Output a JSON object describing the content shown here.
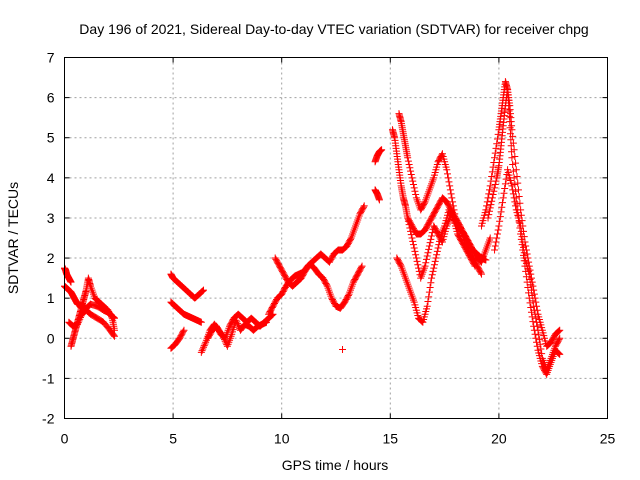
{
  "chart_data": {
    "type": "scatter",
    "title": "Day 196 of 2021, Sidereal Day-to-day VTEC variation (SDTVAR) for receiver chpg",
    "xlabel": "GPS time / hours",
    "ylabel": "SDTVAR / TECUs",
    "xlim": [
      0,
      25
    ],
    "ylim": [
      -2,
      7
    ],
    "xticks": [
      "0",
      "5",
      "10",
      "15",
      "20",
      "25"
    ],
    "yticks": [
      "-2",
      "-1",
      "0",
      "1",
      "2",
      "3",
      "4",
      "5",
      "6",
      "7"
    ],
    "grid": true,
    "marker": "+",
    "color": "#ff0000",
    "series_segments": [
      {
        "x": [
          0.0,
          0.05,
          0.1,
          0.2,
          0.3
        ],
        "y": [
          1.75,
          1.7,
          1.6,
          1.5,
          1.4
        ]
      },
      {
        "x": [
          0.0,
          0.1,
          0.2,
          0.3,
          0.4,
          0.5,
          0.6,
          0.8,
          1.0,
          1.2,
          1.5,
          1.8,
          2.0,
          2.2,
          2.3
        ],
        "y": [
          1.3,
          1.25,
          1.2,
          1.15,
          1.05,
          0.95,
          0.85,
          0.8,
          0.75,
          0.85,
          0.8,
          0.7,
          0.65,
          0.55,
          0.5
        ]
      },
      {
        "x": [
          0.3,
          0.4,
          0.5,
          0.6,
          0.7,
          0.8,
          0.9,
          1.0,
          1.1,
          1.2,
          1.4,
          1.6,
          1.8,
          2.0,
          2.2,
          2.3
        ],
        "y": [
          -0.2,
          0.0,
          0.2,
          0.4,
          0.6,
          0.8,
          1.0,
          1.2,
          1.5,
          1.3,
          1.0,
          0.9,
          0.8,
          0.7,
          0.5,
          0.2
        ]
      },
      {
        "x": [
          0.2,
          0.4,
          0.6,
          0.8,
          1.0,
          1.2,
          1.5,
          1.8,
          2.1,
          2.3
        ],
        "y": [
          0.4,
          0.3,
          0.35,
          0.6,
          0.7,
          0.6,
          0.5,
          0.4,
          0.2,
          0.05
        ]
      },
      {
        "x": [
          4.9,
          5.0,
          5.2,
          5.4,
          5.6,
          5.8,
          6.0,
          6.2,
          6.4
        ],
        "y": [
          1.6,
          1.5,
          1.4,
          1.3,
          1.2,
          1.1,
          1.0,
          1.1,
          1.2
        ]
      },
      {
        "x": [
          4.9,
          5.1,
          5.3,
          5.5,
          5.7,
          5.9,
          6.1,
          6.3
        ],
        "y": [
          0.9,
          0.8,
          0.7,
          0.6,
          0.55,
          0.5,
          0.45,
          0.4
        ]
      },
      {
        "x": [
          4.9,
          5.1,
          5.3,
          5.5
        ],
        "y": [
          -0.25,
          -0.15,
          0.0,
          0.2
        ]
      },
      {
        "x": [
          6.3,
          6.5,
          6.7,
          6.9,
          7.1,
          7.3,
          7.5,
          7.7,
          7.9,
          8.1,
          8.3,
          8.5,
          8.7,
          8.9,
          9.1,
          9.3
        ],
        "y": [
          -0.35,
          -0.1,
          0.2,
          0.35,
          0.2,
          0.05,
          -0.2,
          0.1,
          0.45,
          0.2,
          0.35,
          0.3,
          0.2,
          0.3,
          0.35,
          0.4
        ]
      },
      {
        "x": [
          6.6,
          6.8,
          7.0,
          7.2,
          7.4,
          7.6,
          7.8,
          8.0,
          8.2,
          8.4,
          8.6,
          8.8,
          9.0,
          9.2,
          9.4,
          9.6
        ],
        "y": [
          0.0,
          0.2,
          0.3,
          0.1,
          0.0,
          0.3,
          0.5,
          0.6,
          0.5,
          0.4,
          0.5,
          0.4,
          0.3,
          0.4,
          0.5,
          0.6
        ]
      },
      {
        "x": [
          9.4,
          9.6,
          9.8,
          10.0,
          10.2,
          10.4,
          10.6,
          10.8,
          11.0,
          11.2,
          11.4,
          11.6,
          11.8,
          12.0,
          12.2,
          12.4,
          12.6,
          12.8,
          13.0,
          13.2,
          13.4,
          13.6,
          13.8
        ],
        "y": [
          0.6,
          0.8,
          1.0,
          1.1,
          1.3,
          1.45,
          1.55,
          1.6,
          1.65,
          1.8,
          1.9,
          2.0,
          2.1,
          2.0,
          1.9,
          2.1,
          2.2,
          2.2,
          2.3,
          2.5,
          2.8,
          3.1,
          3.3
        ]
      },
      {
        "x": [
          9.7,
          9.9,
          10.1,
          10.3,
          10.5,
          10.7,
          10.9,
          11.1,
          11.3,
          11.5,
          11.7,
          11.9,
          12.1,
          12.3,
          12.5,
          12.7,
          12.9,
          13.1,
          13.3,
          13.5,
          13.7
        ],
        "y": [
          2.0,
          1.8,
          1.6,
          1.4,
          1.3,
          1.4,
          1.5,
          1.7,
          1.85,
          1.75,
          1.6,
          1.5,
          1.3,
          1.0,
          0.8,
          0.75,
          0.9,
          1.1,
          1.4,
          1.6,
          1.8
        ]
      },
      {
        "x": [
          12.8
        ],
        "y": [
          -0.28
        ]
      },
      {
        "x": [
          14.3,
          14.4,
          14.5,
          14.6
        ],
        "y": [
          4.4,
          4.55,
          4.65,
          4.7
        ]
      },
      {
        "x": [
          14.3,
          14.4,
          14.5
        ],
        "y": [
          3.7,
          3.6,
          3.45
        ]
      },
      {
        "x": [
          15.1,
          15.2,
          15.3,
          15.4,
          15.5,
          15.6,
          15.7,
          15.8,
          16.0,
          16.2,
          16.4,
          16.6,
          16.8,
          17.0,
          17.2,
          17.4,
          17.6,
          17.8,
          18.0,
          18.2,
          18.4,
          18.6,
          18.8,
          19.0,
          19.2,
          19.4,
          19.6
        ],
        "y": [
          5.2,
          5.0,
          4.6,
          4.2,
          3.8,
          3.5,
          3.3,
          3.0,
          2.8,
          2.6,
          2.6,
          2.7,
          2.9,
          3.1,
          3.3,
          3.5,
          3.4,
          3.2,
          3.0,
          2.8,
          2.6,
          2.4,
          2.2,
          2.0,
          1.9,
          2.2,
          2.5
        ]
      },
      {
        "x": [
          15.4,
          15.5,
          15.6,
          15.7,
          15.8,
          16.0,
          16.2,
          16.4,
          16.6,
          16.8,
          17.0,
          17.2,
          17.4,
          17.6,
          17.8,
          18.0,
          18.2,
          18.4,
          18.6,
          18.8,
          19.0,
          19.2
        ],
        "y": [
          5.6,
          5.4,
          5.1,
          4.8,
          4.5,
          4.0,
          3.5,
          3.2,
          3.4,
          3.7,
          4.0,
          4.4,
          4.6,
          4.2,
          3.6,
          3.0,
          2.8,
          2.5,
          2.2,
          2.0,
          1.8,
          1.6
        ]
      },
      {
        "x": [
          15.3,
          15.5,
          15.7,
          15.9,
          16.1,
          16.3,
          16.5,
          16.7,
          16.9,
          17.1,
          17.3,
          17.5,
          17.7,
          17.9,
          18.1,
          18.3,
          18.5,
          18.7,
          18.9
        ],
        "y": [
          2.0,
          1.8,
          1.5,
          1.2,
          0.9,
          0.5,
          0.4,
          0.8,
          1.5,
          2.0,
          2.5,
          2.8,
          3.2,
          3.0,
          2.6,
          2.4,
          2.2,
          2.0,
          1.8
        ]
      },
      {
        "x": [
          15.8,
          16.0,
          16.2,
          16.4,
          16.6,
          16.8,
          17.0,
          17.2,
          17.4,
          17.6,
          17.8,
          18.0,
          18.2,
          18.4,
          18.6,
          18.8,
          19.0,
          19.2,
          19.4
        ],
        "y": [
          3.0,
          2.5,
          2.0,
          1.5,
          1.8,
          2.3,
          2.8,
          2.6,
          2.4,
          2.8,
          3.1,
          2.9,
          2.7,
          2.6,
          2.4,
          2.2,
          2.1,
          2.0,
          1.95
        ]
      },
      {
        "x": [
          19.2,
          19.4,
          19.6,
          19.8,
          20.0,
          20.1,
          20.2,
          20.3,
          20.4,
          20.5,
          20.6,
          20.8,
          21.0,
          21.2,
          21.4,
          21.6,
          21.8,
          22.0,
          22.2,
          22.4,
          22.6,
          22.8
        ],
        "y": [
          2.8,
          3.2,
          3.8,
          4.5,
          5.2,
          5.6,
          6.0,
          6.4,
          6.2,
          5.4,
          4.5,
          3.5,
          2.6,
          1.8,
          1.0,
          0.3,
          -0.3,
          -0.7,
          -0.9,
          -0.6,
          -0.3,
          -0.4
        ]
      },
      {
        "x": [
          19.5,
          19.7,
          19.9,
          20.0,
          20.1,
          20.2,
          20.3,
          20.4,
          20.5,
          20.6,
          20.8,
          21.0,
          21.2,
          21.4,
          21.6,
          21.8,
          22.0,
          22.2,
          22.4,
          22.6,
          22.8
        ],
        "y": [
          3.0,
          3.5,
          4.0,
          4.3,
          4.8,
          5.3,
          5.8,
          6.2,
          5.8,
          5.2,
          4.2,
          3.2,
          2.4,
          1.8,
          1.2,
          0.6,
          0.2,
          -0.2,
          -0.1,
          0.1,
          0.2
        ]
      },
      {
        "x": [
          19.8,
          20.0,
          20.2,
          20.4,
          20.6,
          20.8,
          21.0,
          21.2,
          21.4,
          21.6,
          21.8,
          22.0,
          22.2,
          22.4,
          22.6,
          22.8
        ],
        "y": [
          2.2,
          2.8,
          3.5,
          4.2,
          3.8,
          3.2,
          2.8,
          2.0,
          1.6,
          0.8,
          0.2,
          -0.5,
          -0.8,
          -0.5,
          -0.2,
          0.0
        ]
      }
    ]
  }
}
